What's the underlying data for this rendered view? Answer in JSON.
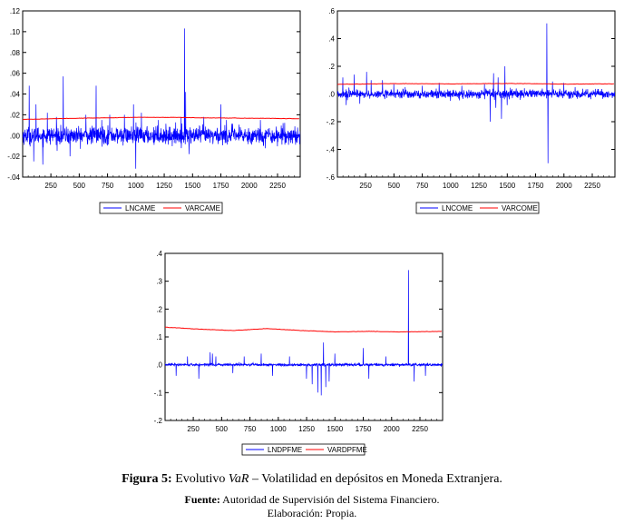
{
  "chart_data": [
    {
      "type": "line",
      "title": "",
      "x_ticks": [
        250,
        500,
        750,
        1000,
        1250,
        1500,
        1750,
        2000,
        2250
      ],
      "y_ticks": [
        -0.04,
        -0.02,
        0.0,
        0.02,
        0.04,
        0.06,
        0.08,
        0.1,
        0.12
      ],
      "y_tick_labels": [
        "-.04",
        "-.02",
        ".00",
        ".02",
        ".04",
        ".06",
        ".08",
        ".10",
        ".12"
      ],
      "xlim": [
        1,
        2450
      ],
      "ylim": [
        -0.04,
        0.12
      ],
      "grid": false,
      "legend": "bottom",
      "series": [
        {
          "name": "LNCAME",
          "color": "#0000ff",
          "baseline": 0.0,
          "noise": 0.007,
          "spikes": [
            [
              60,
              0.048
            ],
            [
              100,
              -0.025
            ],
            [
              120,
              0.03
            ],
            [
              180,
              -0.028
            ],
            [
              220,
              0.022
            ],
            [
              300,
              0.018
            ],
            [
              360,
              0.057
            ],
            [
              420,
              -0.02
            ],
            [
              560,
              0.02
            ],
            [
              650,
              0.048
            ],
            [
              700,
              0.015
            ],
            [
              770,
              0.02
            ],
            [
              900,
              0.02
            ],
            [
              980,
              0.03
            ],
            [
              1000,
              -0.032
            ],
            [
              1050,
              0.022
            ],
            [
              1200,
              0.015
            ],
            [
              1400,
              0.018
            ],
            [
              1430,
              0.103
            ],
            [
              1440,
              0.042
            ],
            [
              1470,
              -0.018
            ],
            [
              1600,
              0.018
            ],
            [
              1750,
              0.03
            ],
            [
              1800,
              0.015
            ],
            [
              2100,
              0.015
            ],
            [
              2300,
              0.012
            ]
          ]
        },
        {
          "name": "VARCAME",
          "color": "#ff0000",
          "points": [
            [
              1,
              0.0155
            ],
            [
              400,
              0.0165
            ],
            [
              700,
              0.017
            ],
            [
              1000,
              0.0175
            ],
            [
              1300,
              0.0175
            ],
            [
              1600,
              0.017
            ],
            [
              1900,
              0.0168
            ],
            [
              2200,
              0.0165
            ],
            [
              2450,
              0.0162
            ]
          ]
        }
      ]
    },
    {
      "type": "line",
      "title": "",
      "x_ticks": [
        250,
        500,
        750,
        1000,
        1250,
        1500,
        1750,
        2000,
        2250
      ],
      "y_ticks": [
        -0.6,
        -0.4,
        -0.2,
        0.0,
        0.2,
        0.4,
        0.6
      ],
      "y_tick_labels": [
        "-.6",
        "-.4",
        "-.2",
        ".0",
        ".2",
        ".4",
        ".6"
      ],
      "xlim": [
        1,
        2450
      ],
      "ylim": [
        -0.6,
        0.6
      ],
      "grid": false,
      "legend": "bottom",
      "series": [
        {
          "name": "LNCOME",
          "color": "#0000ff",
          "baseline": 0.0,
          "noise": 0.025,
          "spikes": [
            [
              50,
              0.12
            ],
            [
              80,
              -0.08
            ],
            [
              150,
              0.14
            ],
            [
              200,
              -0.07
            ],
            [
              260,
              0.16
            ],
            [
              300,
              0.1
            ],
            [
              400,
              0.1
            ],
            [
              500,
              0.07
            ],
            [
              600,
              0.05
            ],
            [
              750,
              0.06
            ],
            [
              900,
              0.08
            ],
            [
              1000,
              -0.05
            ],
            [
              1100,
              0.06
            ],
            [
              1300,
              0.07
            ],
            [
              1350,
              -0.2
            ],
            [
              1380,
              0.15
            ],
            [
              1400,
              -0.1
            ],
            [
              1420,
              0.12
            ],
            [
              1450,
              -0.18
            ],
            [
              1480,
              0.2
            ],
            [
              1500,
              -0.08
            ],
            [
              1850,
              0.51
            ],
            [
              1860,
              -0.5
            ],
            [
              1900,
              0.09
            ],
            [
              2000,
              0.08
            ],
            [
              2100,
              0.05
            ]
          ]
        },
        {
          "name": "VARCOME",
          "color": "#ff0000",
          "points": [
            [
              1,
              0.07
            ],
            [
              500,
              0.075
            ],
            [
              1000,
              0.073
            ],
            [
              1500,
              0.076
            ],
            [
              2000,
              0.072
            ],
            [
              2450,
              0.073
            ]
          ]
        }
      ]
    },
    {
      "type": "line",
      "title": "",
      "x_ticks": [
        250,
        500,
        750,
        1000,
        1250,
        1500,
        1750,
        2000,
        2250
      ],
      "y_ticks": [
        -0.2,
        -0.1,
        0.0,
        0.1,
        0.2,
        0.3,
        0.4
      ],
      "y_tick_labels": [
        "-.2",
        "-.1",
        ".0",
        ".1",
        ".2",
        ".3",
        ".4"
      ],
      "xlim": [
        1,
        2450
      ],
      "ylim": [
        -0.2,
        0.4
      ],
      "grid": false,
      "legend": "bottom",
      "series": [
        {
          "name": "LNDPFME",
          "color": "#0000ff",
          "baseline": 0.0,
          "noise": 0.004,
          "spikes": [
            [
              100,
              -0.04
            ],
            [
              200,
              0.03
            ],
            [
              300,
              -0.05
            ],
            [
              400,
              0.045
            ],
            [
              420,
              0.04
            ],
            [
              450,
              0.03
            ],
            [
              600,
              -0.03
            ],
            [
              700,
              0.03
            ],
            [
              850,
              0.04
            ],
            [
              950,
              -0.04
            ],
            [
              1100,
              0.03
            ],
            [
              1250,
              -0.05
            ],
            [
              1300,
              -0.07
            ],
            [
              1350,
              -0.1
            ],
            [
              1380,
              -0.11
            ],
            [
              1400,
              0.08
            ],
            [
              1420,
              -0.08
            ],
            [
              1450,
              -0.06
            ],
            [
              1500,
              0.04
            ],
            [
              1750,
              0.06
            ],
            [
              1800,
              -0.05
            ],
            [
              1950,
              0.03
            ],
            [
              2150,
              0.34
            ],
            [
              2200,
              -0.06
            ],
            [
              2300,
              -0.04
            ]
          ]
        },
        {
          "name": "VARDPFME",
          "color": "#ff0000",
          "points": [
            [
              1,
              0.135
            ],
            [
              300,
              0.128
            ],
            [
              600,
              0.123
            ],
            [
              900,
              0.13
            ],
            [
              1200,
              0.123
            ],
            [
              1500,
              0.118
            ],
            [
              1800,
              0.12
            ],
            [
              2100,
              0.118
            ],
            [
              2450,
              0.12
            ]
          ]
        }
      ]
    }
  ],
  "caption": {
    "figure_label": "Figura 5:",
    "text_before": " Evolutivo ",
    "var_italic": "VaR",
    "text_after": " – Volatilidad  en depósitos en Moneda Extranjera.",
    "source_label": "Fuente:",
    "source_text": " Autoridad de Supervisión del Sistema Financiero.",
    "elaboration": "Elaboración: Propia."
  }
}
